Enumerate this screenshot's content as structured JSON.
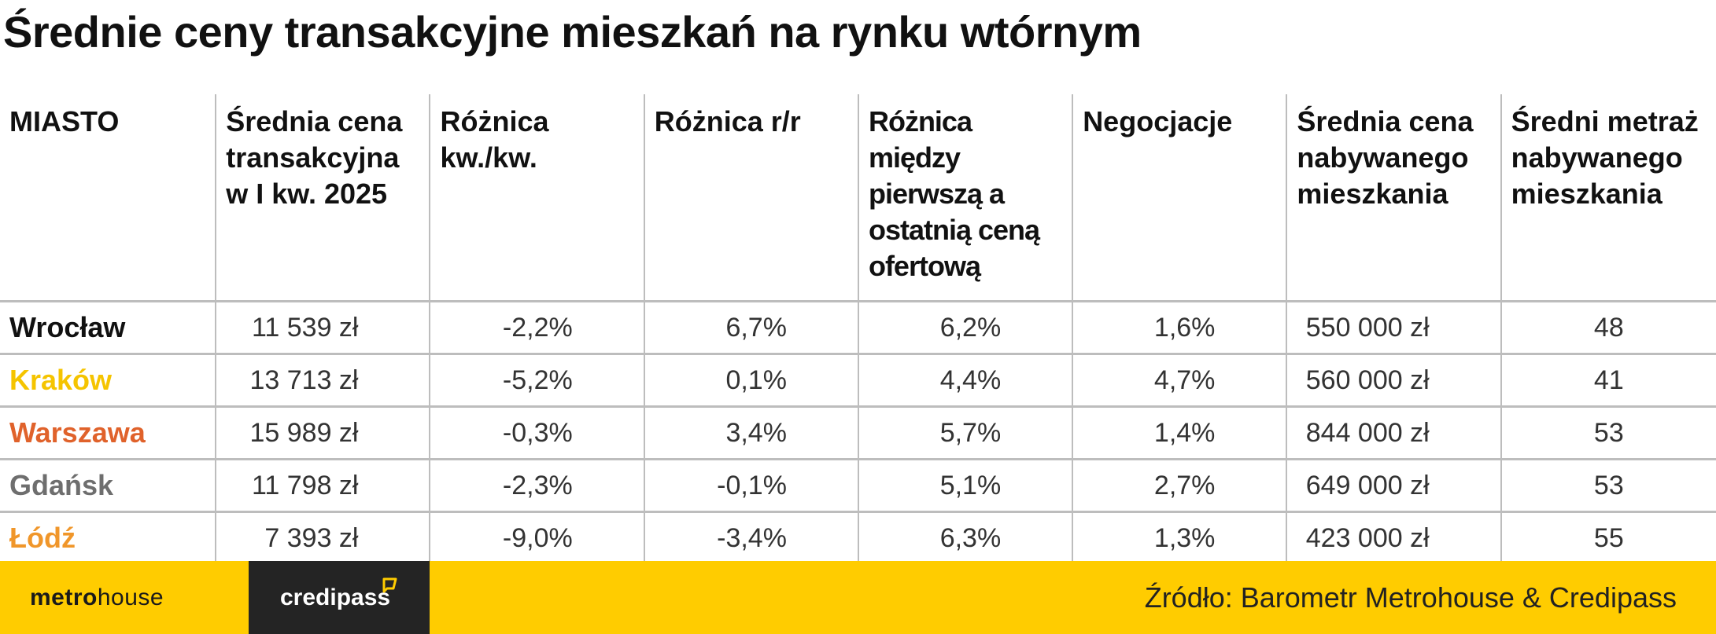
{
  "title": "Średnie ceny transakcyjne mieszkań na rynku wtórnym",
  "table": {
    "headers": [
      "MIASTO",
      "Średnia cena transakcyjna w I kw. 2025",
      "Różnica kw./kw.",
      "Różnica r/r",
      "Różnica między pierwszą a ostatnią ceną ofertową",
      "Negocjacje",
      "Średnia cena nabywanego mieszkania",
      "Średni metraż nabywanego mieszkania"
    ],
    "rows": [
      {
        "city": "Wrocław",
        "color": "#111111",
        "values": [
          "11 539 zł",
          "-2,2%",
          "6,7%",
          "6,2%",
          "1,6%",
          "550 000 zł",
          "48"
        ]
      },
      {
        "city": "Kraków",
        "color": "#f5c400",
        "values": [
          "13 713 zł",
          "-5,2%",
          "0,1%",
          "4,4%",
          "4,7%",
          "560 000 zł",
          "41"
        ]
      },
      {
        "city": "Warszawa",
        "color": "#e0622b",
        "values": [
          "15 989 zł",
          "-0,3%",
          "3,4%",
          "5,7%",
          "1,4%",
          "844 000 zł",
          "53"
        ]
      },
      {
        "city": "Gdańsk",
        "color": "#6e6e6e",
        "values": [
          "11 798 zł",
          "-2,3%",
          "-0,1%",
          "5,1%",
          "2,7%",
          "649 000 zł",
          "53"
        ]
      },
      {
        "city": "Łódź",
        "color": "#f0962a",
        "values": [
          "7 393 zł",
          "-9,0%",
          "-3,4%",
          "6,3%",
          "1,3%",
          "423 000 zł",
          "55"
        ]
      }
    ]
  },
  "footer": {
    "logo_metro_bold": "metro",
    "logo_metro_light": "house",
    "logo_credipass": "credipass",
    "source": "Źródło: Barometr Metrohouse & Credipass",
    "accent": "#ffcc00",
    "dark": "#242424"
  }
}
